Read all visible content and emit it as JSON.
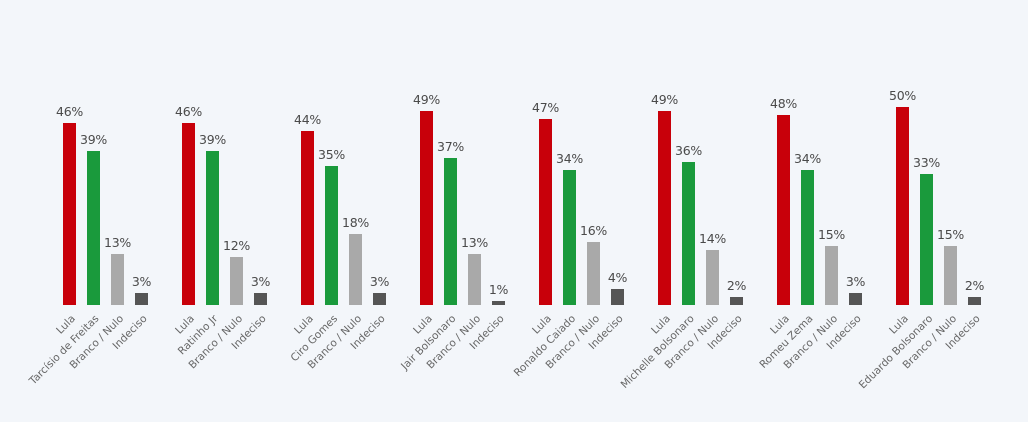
{
  "chart_data": {
    "type": "bar",
    "title": "",
    "xlabel": "",
    "ylabel": "",
    "ylim": [
      0,
      55
    ],
    "grid": false,
    "legend": "none",
    "colors": {
      "Lula": "#c8000a",
      "Oponente": "#1a9a3c",
      "Branco / Nulo": "#a9a9a9",
      "Indeciso": "#555555"
    },
    "groups": [
      {
        "opponent": "Tarcísio de Freitas",
        "categories": [
          "Lula",
          "Tarcísio de Freitas",
          "Branco / Nulo",
          "Indeciso"
        ],
        "values": [
          46,
          39,
          13,
          3
        ],
        "labels": [
          "46%",
          "39%",
          "13%",
          "3%"
        ]
      },
      {
        "opponent": "Ratinho Jr",
        "categories": [
          "Lula",
          "Ratinho Jr",
          "Branco / Nulo",
          "Indeciso"
        ],
        "values": [
          46,
          39,
          12,
          3
        ],
        "labels": [
          "46%",
          "39%",
          "12%",
          "3%"
        ]
      },
      {
        "opponent": "Ciro Gomes",
        "categories": [
          "Lula",
          "Ciro Gomes",
          "Branco / Nulo",
          "Indeciso"
        ],
        "values": [
          44,
          35,
          18,
          3
        ],
        "labels": [
          "44%",
          "35%",
          "18%",
          "3%"
        ]
      },
      {
        "opponent": "Jair Bolsonaro",
        "categories": [
          "Lula",
          "Jair Bolsonaro",
          "Branco / Nulo",
          "Indeciso"
        ],
        "values": [
          49,
          37,
          13,
          1
        ],
        "labels": [
          "49%",
          "37%",
          "13%",
          "1%"
        ]
      },
      {
        "opponent": "Ronaldo Caiado",
        "categories": [
          "Lula",
          "Ronaldo Caiado",
          "Branco / Nulo",
          "Indeciso"
        ],
        "values": [
          47,
          34,
          16,
          4
        ],
        "labels": [
          "47%",
          "34%",
          "16%",
          "4%"
        ]
      },
      {
        "opponent": "Michelle Bolsonaro",
        "categories": [
          "Lula",
          "Michelle Bolsonaro",
          "Branco / Nulo",
          "Indeciso"
        ],
        "values": [
          49,
          36,
          14,
          2
        ],
        "labels": [
          "49%",
          "36%",
          "14%",
          "2%"
        ]
      },
      {
        "opponent": "Romeu Zema",
        "categories": [
          "Lula",
          "Romeu Zema",
          "Branco / Nulo",
          "Indeciso"
        ],
        "values": [
          48,
          34,
          15,
          3
        ],
        "labels": [
          "48%",
          "34%",
          "15%",
          "3%"
        ]
      },
      {
        "opponent": "Eduardo Bolsonaro",
        "categories": [
          "Lula",
          "Eduardo Bolsonaro",
          "Branco / Nulo",
          "Indeciso"
        ],
        "values": [
          50,
          33,
          15,
          2
        ],
        "labels": [
          "50%",
          "33%",
          "15%",
          "2%"
        ]
      }
    ]
  }
}
